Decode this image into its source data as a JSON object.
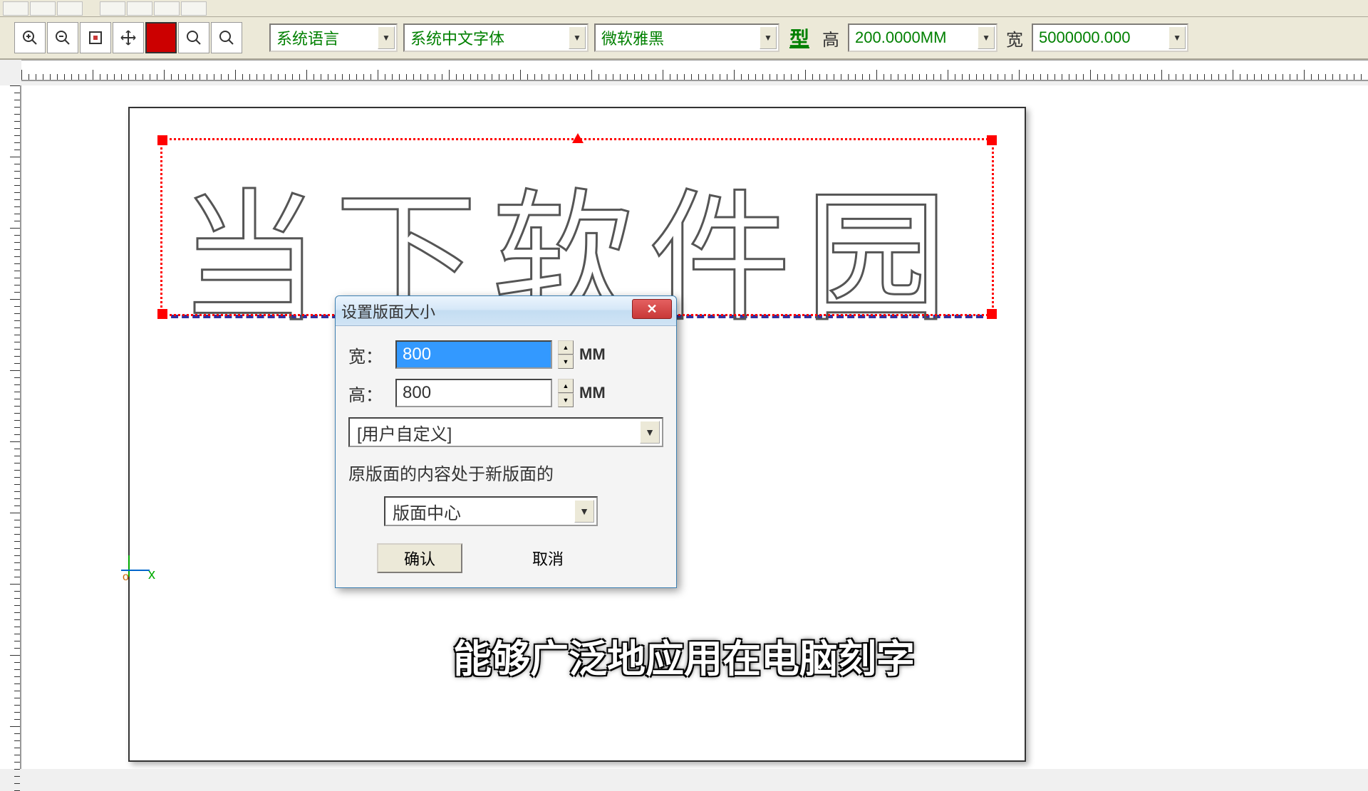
{
  "toolbar": {
    "dropdowns": {
      "language": "系统语言",
      "cn_font": "系统中文字体",
      "msyh": "微软雅黑"
    },
    "type_label": "型",
    "height_label": "高",
    "height_value": "200.0000MM",
    "width_label": "宽",
    "width_value": "5000000.000"
  },
  "canvas": {
    "outline_text": "当下软件园"
  },
  "dialog": {
    "title": "设置版面大小",
    "close": "✕",
    "width_label": "宽：",
    "width_value": "800",
    "height_label": "高：",
    "height_value": "800",
    "unit": "MM",
    "preset_selected": "[用户自定义]",
    "position_section": "原版面的内容处于新版面的",
    "position_selected": "版面中心",
    "ok": "确认",
    "cancel": "取消"
  },
  "subtitle": "能够广泛地应用在电脑刻字",
  "origin": {
    "x": "x",
    "o": "o"
  }
}
